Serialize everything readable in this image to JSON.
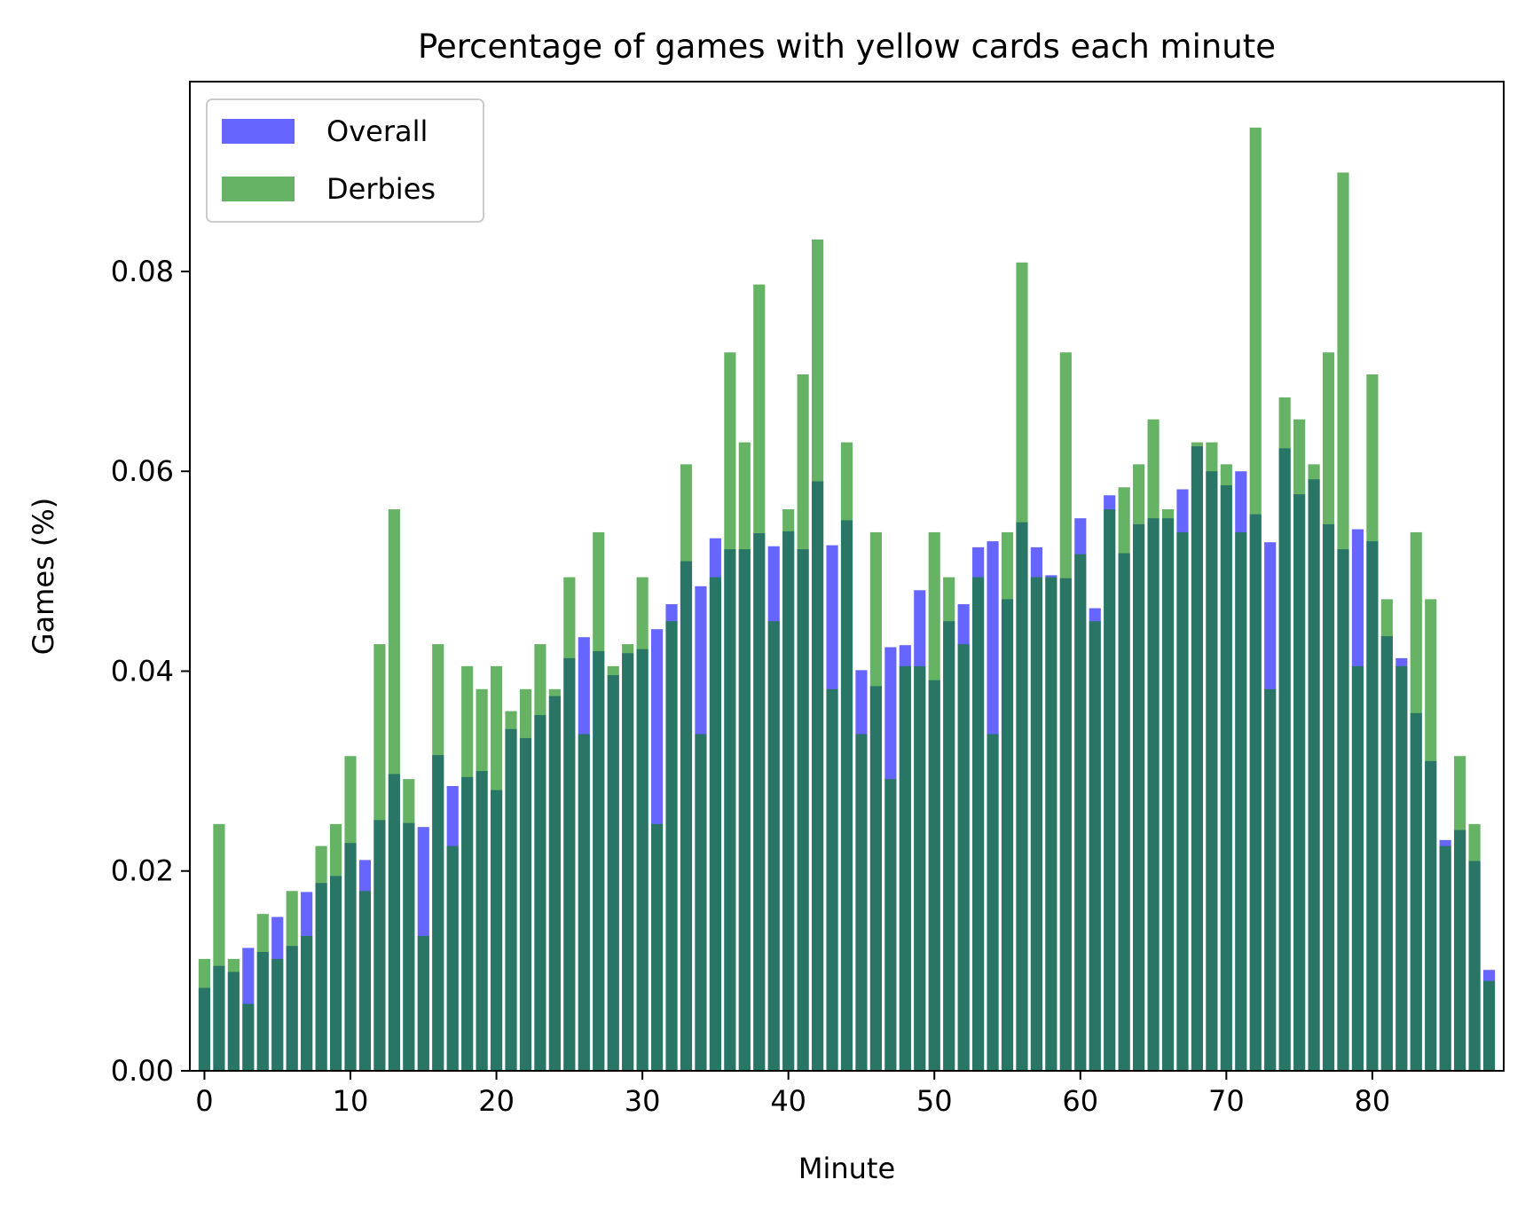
{
  "chart_data": {
    "type": "bar",
    "title": "Percentage of games with yellow cards each minute",
    "xlabel": "Minute",
    "ylabel": "Games (%)",
    "xlim": [
      -1,
      89
    ],
    "ylim": [
      0,
      0.099
    ],
    "x_ticks": [
      "0",
      "10",
      "20",
      "30",
      "40",
      "50",
      "60",
      "70",
      "80"
    ],
    "y_ticks": [
      "0.00",
      "0.02",
      "0.04",
      "0.06",
      "0.08"
    ],
    "grid": false,
    "legend_position": "top-left",
    "x": [
      0,
      1,
      2,
      3,
      4,
      5,
      6,
      7,
      8,
      9,
      10,
      11,
      12,
      13,
      14,
      15,
      16,
      17,
      18,
      19,
      20,
      21,
      22,
      23,
      24,
      25,
      26,
      27,
      28,
      29,
      30,
      31,
      32,
      33,
      34,
      35,
      36,
      37,
      38,
      39,
      40,
      41,
      42,
      43,
      44,
      45,
      46,
      47,
      48,
      49,
      50,
      51,
      52,
      53,
      54,
      55,
      56,
      57,
      58,
      59,
      60,
      61,
      62,
      63,
      64,
      65,
      66,
      67,
      68,
      69,
      70,
      71,
      72,
      73,
      74,
      75,
      76,
      77,
      78,
      79,
      80,
      81,
      82,
      83,
      84,
      85,
      86,
      87,
      88
    ],
    "series": [
      {
        "name": "Overall",
        "color": "#0000ff",
        "opacity": 0.6,
        "values": [
          0.0083,
          0.0105,
          0.0099,
          0.0123,
          0.0119,
          0.0154,
          0.0125,
          0.0179,
          0.0188,
          0.0195,
          0.0228,
          0.0211,
          0.0251,
          0.0297,
          0.0248,
          0.0244,
          0.0316,
          0.0285,
          0.0294,
          0.03,
          0.0281,
          0.0342,
          0.0333,
          0.0356,
          0.0375,
          0.0413,
          0.0434,
          0.042,
          0.0396,
          0.0418,
          0.0422,
          0.0442,
          0.0467,
          0.051,
          0.0485,
          0.0533,
          0.0522,
          0.0522,
          0.0538,
          0.0525,
          0.054,
          0.0522,
          0.059,
          0.0526,
          0.0551,
          0.0401,
          0.0385,
          0.0424,
          0.0426,
          0.0481,
          0.0391,
          0.045,
          0.0467,
          0.0524,
          0.053,
          0.0472,
          0.0549,
          0.0524,
          0.0496,
          0.0493,
          0.0553,
          0.0463,
          0.0576,
          0.0518,
          0.0547,
          0.0553,
          0.0553,
          0.0582,
          0.0625,
          0.06,
          0.0586,
          0.06,
          0.0557,
          0.0529,
          0.0623,
          0.0577,
          0.0592,
          0.0547,
          0.0522,
          0.0542,
          0.053,
          0.0435,
          0.0413,
          0.0358,
          0.031,
          0.0231,
          0.0241,
          0.021,
          0.0101
        ]
      },
      {
        "name": "Derbies",
        "color": "#008000",
        "opacity": 0.6,
        "values": [
          0.0112,
          0.0247,
          0.0112,
          0.0067,
          0.0157,
          0.0112,
          0.018,
          0.0135,
          0.0225,
          0.0247,
          0.0315,
          0.018,
          0.0427,
          0.0562,
          0.0292,
          0.0135,
          0.0427,
          0.0225,
          0.0405,
          0.0382,
          0.0405,
          0.036,
          0.0382,
          0.0427,
          0.0382,
          0.0494,
          0.0337,
          0.0539,
          0.0405,
          0.0427,
          0.0494,
          0.0247,
          0.045,
          0.0607,
          0.0337,
          0.0494,
          0.0719,
          0.0629,
          0.0787,
          0.045,
          0.0562,
          0.0697,
          0.0832,
          0.0382,
          0.0629,
          0.0337,
          0.0539,
          0.0292,
          0.0405,
          0.0405,
          0.0539,
          0.0494,
          0.0427,
          0.0494,
          0.0337,
          0.0539,
          0.0809,
          0.0494,
          0.0494,
          0.0719,
          0.0517,
          0.045,
          0.0562,
          0.0584,
          0.0607,
          0.0652,
          0.0562,
          0.0539,
          0.0629,
          0.0629,
          0.0607,
          0.0539,
          0.0944,
          0.0382,
          0.0674,
          0.0652,
          0.0607,
          0.0719,
          0.0899,
          0.0405,
          0.0697,
          0.0472,
          0.0405,
          0.0539,
          0.0472,
          0.0225,
          0.0315,
          0.0247,
          0.009
        ]
      }
    ]
  }
}
